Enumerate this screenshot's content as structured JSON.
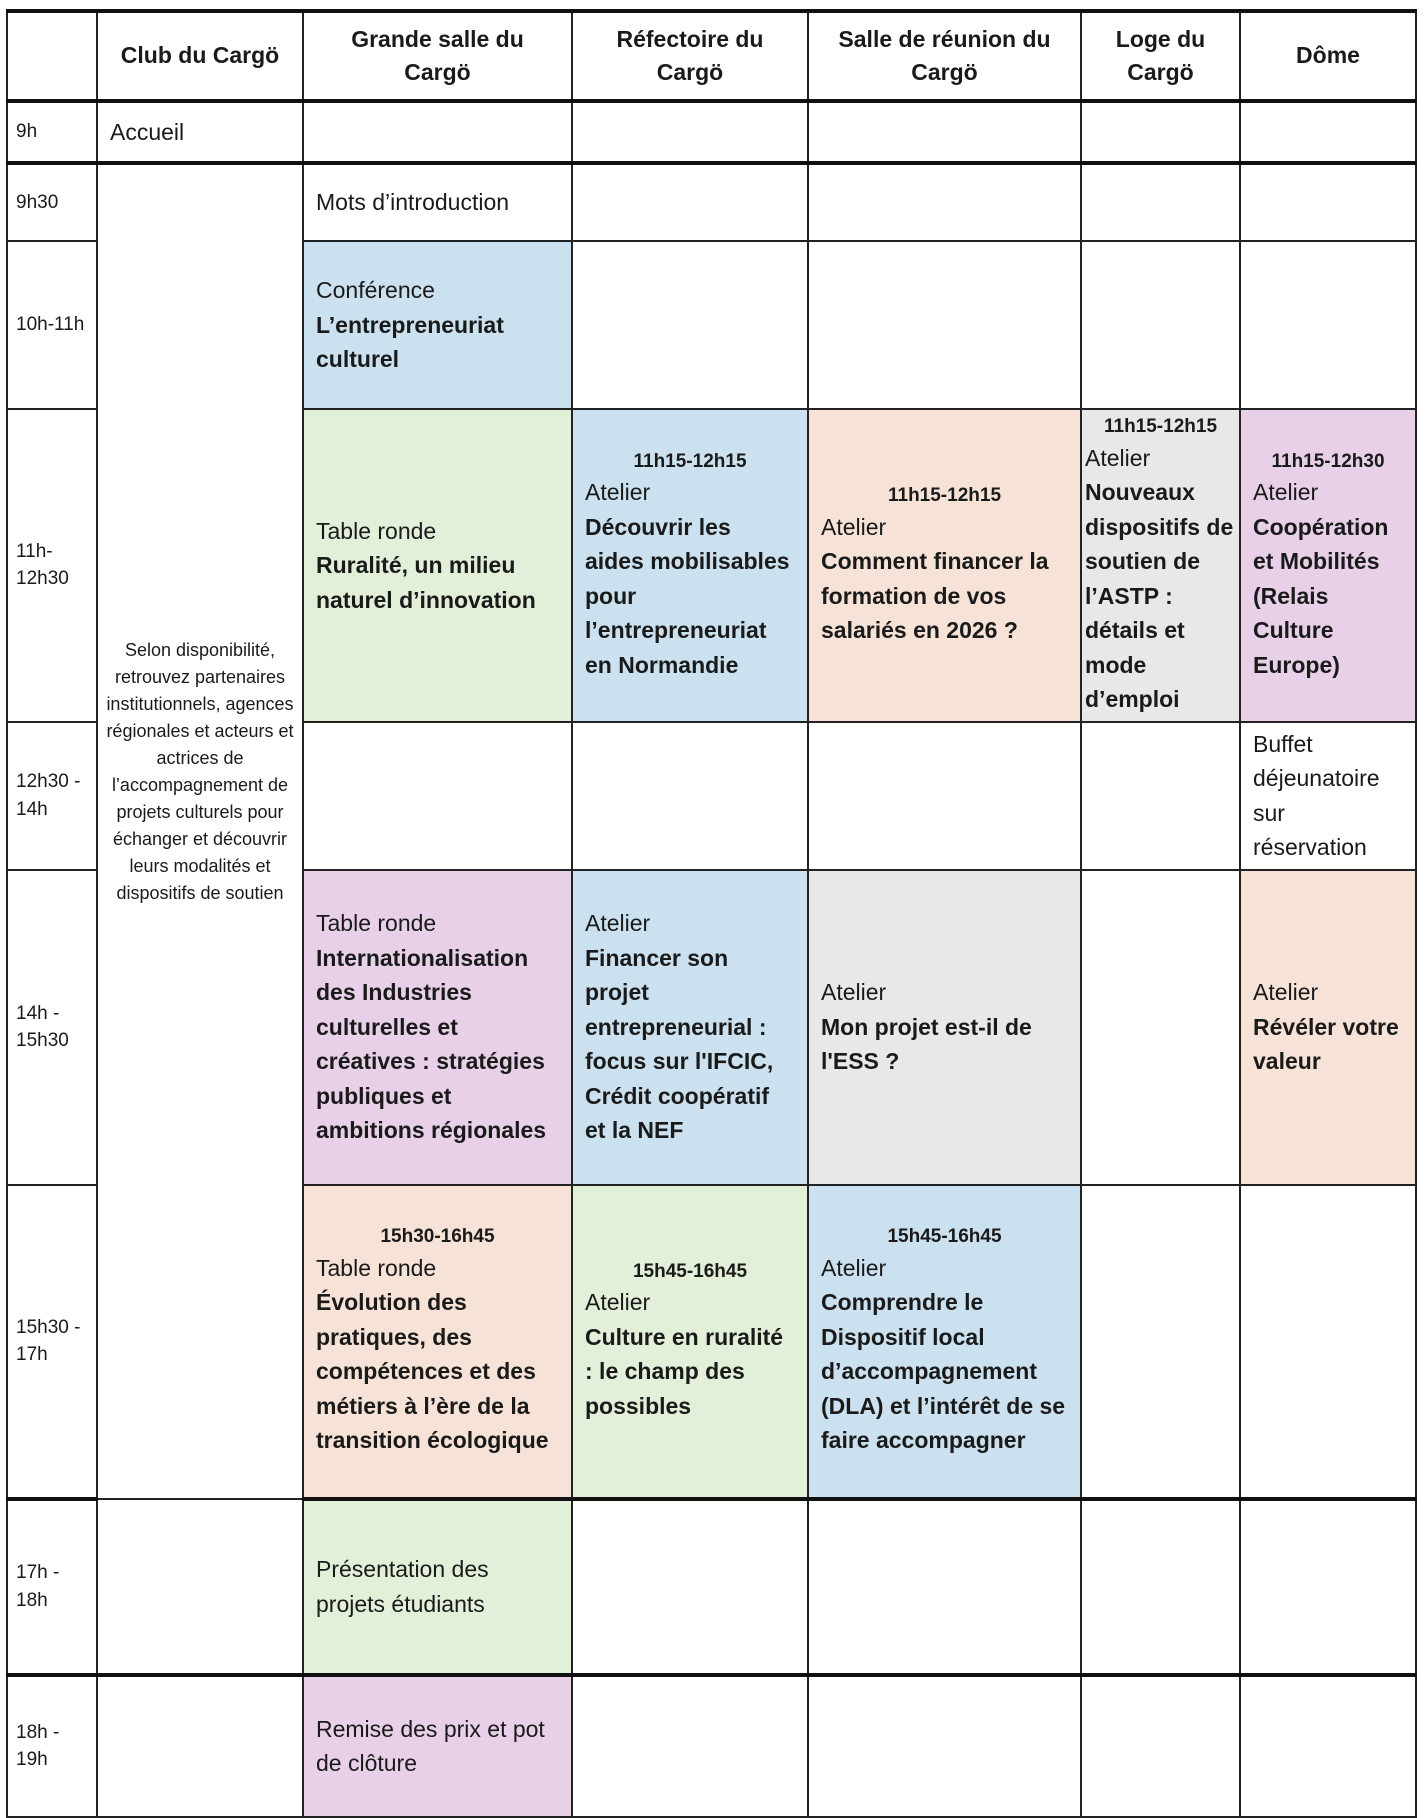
{
  "columns": [
    "",
    "Club du Cargö",
    "Grande salle du Cargö",
    "Réfectoire du Cargö",
    "Salle de réunion du Cargö",
    "Loge du Cargö",
    "Dôme"
  ],
  "colors": {
    "blue": "#cce1f0",
    "green": "#e2efd9",
    "peach": "#f6e2d6",
    "grey": "#e8e8e8",
    "purple": "#e8d1e8"
  },
  "times": [
    "9h",
    "9h30",
    "10h-11h",
    "11h-12h30",
    "12h30 - 14h",
    "14h - 15h30",
    "15h30 - 17h",
    "17h - 18h",
    "18h - 19h"
  ],
  "club": {
    "accueil": "Accueil",
    "info": "Selon disponibilité, retrouvez partenaires institutionnels, agences régionales et acteurs et actrices de l’accompagnement de projets culturels pour échanger et découvrir leurs modalités et dispositifs de soutien"
  },
  "sessions": {
    "intro": "Mots d’introduction",
    "conf": {
      "type": "Conférence",
      "title": "L’entrepreneuriat culturel"
    },
    "ruralite": {
      "type": "Table ronde",
      "title": "Ruralité, un milieu naturel d’innovation"
    },
    "aides": {
      "time": "11h15-12h15",
      "type": "Atelier",
      "title": "Découvrir les aides mobilisables pour l’entrepreneuriat en Normandie"
    },
    "formation": {
      "time": "11h15-12h15",
      "type": "Atelier",
      "title": "Comment financer la formation de vos salariés en 2026 ?"
    },
    "astp": {
      "time": "11h15-12h15",
      "type": "Atelier",
      "title": "Nouveaux dispositifs de soutien de l’ASTP : détails et mode d’emploi"
    },
    "cooperation": {
      "time": "11h15-12h30",
      "type": "Atelier",
      "title": "Coopération et Mobilités (Relais Culture Europe)"
    },
    "buffet": "Buffet déjeunatoire sur réservation",
    "international": {
      "type": "Table ronde",
      "title": "Internationalisation des Industries culturelles et créatives : stratégies publiques et ambitions régionales"
    },
    "financer": {
      "type": "Atelier",
      "title": "Financer son projet entrepreneurial : focus sur l'IFCIC, Crédit coopératif et la NEF"
    },
    "ess": {
      "type": "Atelier",
      "title": "Mon projet est-il de l'ESS ?"
    },
    "valeur": {
      "type": "Atelier",
      "title": "Révéler votre valeur"
    },
    "evolution": {
      "time": "15h30-16h45",
      "type": "Table ronde",
      "title": "Évolution des pratiques, des compétences et des métiers à l’ère de la transition écologique"
    },
    "ruralite2": {
      "time": "15h45-16h45",
      "type": "Atelier",
      "title": "Culture en ruralité : le champ des possibles"
    },
    "dla": {
      "time": "15h45-16h45",
      "type": "Atelier",
      "title": "Comprendre le Dispositif local d’accompagnement (DLA) et l’intérêt de se faire accompagner"
    },
    "etudiants": "Présentation des projets étudiants",
    "prix": "Remise des prix et pot de clôture"
  }
}
